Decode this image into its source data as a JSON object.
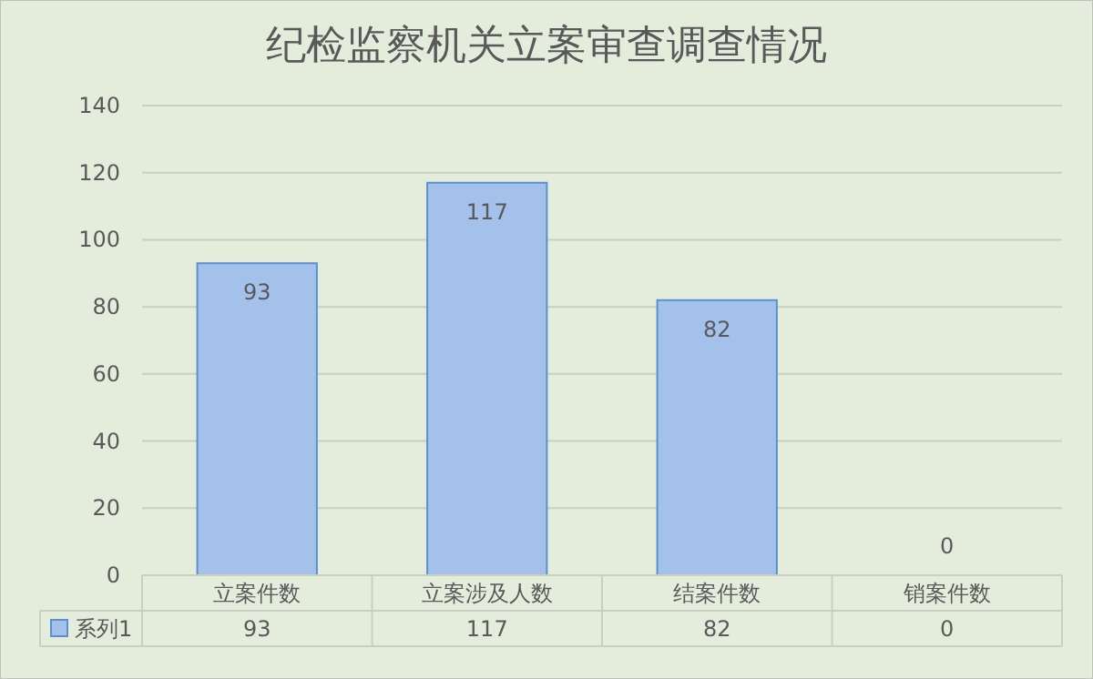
{
  "chart_data": {
    "type": "bar",
    "title": "纪检监察机关立案审查调查情况",
    "categories": [
      "立案件数",
      "立案涉及人数",
      "结案件数",
      "销案件数"
    ],
    "series": [
      {
        "name": "系列1",
        "color": "#a3c1ea",
        "values": [
          93,
          117,
          82,
          0
        ]
      }
    ],
    "annotations": [
      {
        "text": "93",
        "x": "立案件数",
        "y": 93
      },
      {
        "text": "117",
        "x": "立案涉及人数",
        "y": 117
      },
      {
        "text": "82",
        "x": "结案件数",
        "y": 82
      },
      {
        "text": "0",
        "x": "销案件数",
        "y": 0
      }
    ],
    "ylim": [
      0,
      140
    ],
    "yticks": [
      0,
      20,
      40,
      60,
      80,
      100,
      120,
      140
    ],
    "grid": "y",
    "data_labels": true,
    "legend": "bottom"
  }
}
